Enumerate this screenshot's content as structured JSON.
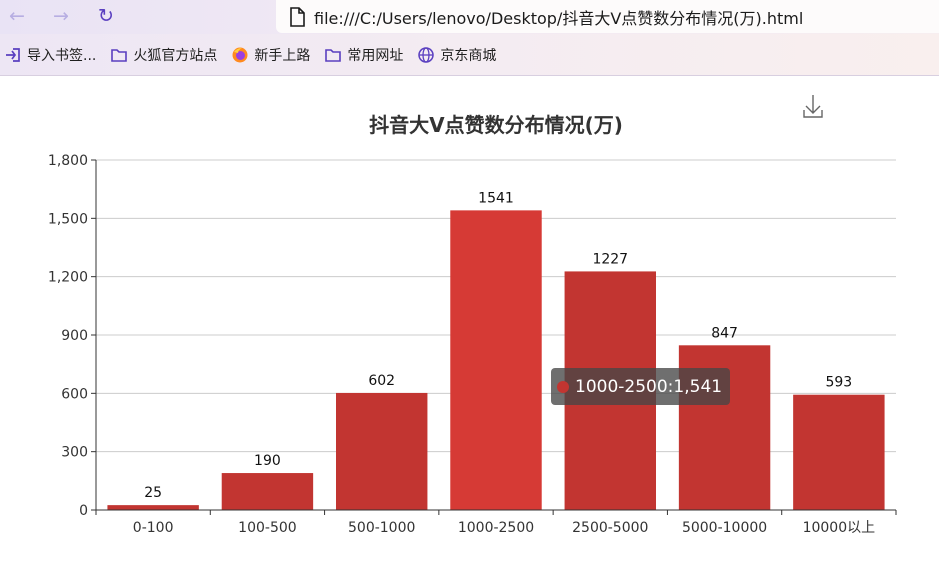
{
  "browser": {
    "url": "file:///C:/Users/lenovo/Desktop/抖音大V点赞数分布情况(万).html",
    "bookmarks": [
      {
        "label": "导入书签...",
        "icon": "import-icon"
      },
      {
        "label": "火狐官方站点",
        "icon": "folder-icon"
      },
      {
        "label": "新手上路",
        "icon": "firefox-icon"
      },
      {
        "label": "常用网址",
        "icon": "folder-icon"
      },
      {
        "label": "京东商城",
        "icon": "globe-icon"
      }
    ]
  },
  "colors": {
    "bar": "#c23531",
    "bar_highlight": "#d63a35",
    "axis": "#333333",
    "grid": "#cccccc",
    "title": "#333333"
  },
  "chart_data": {
    "type": "bar",
    "title": "抖音大V点赞数分布情况(万)",
    "categories": [
      "0-100",
      "100-500",
      "500-1000",
      "1000-2500",
      "2500-5000",
      "5000-10000",
      "10000以上"
    ],
    "values": [
      25,
      190,
      602,
      1541,
      1227,
      847,
      593
    ],
    "ylim": [
      0,
      1800
    ],
    "yticks": [
      "0",
      "300",
      "600",
      "900",
      "1,200",
      "1,500",
      "1,800"
    ],
    "grid": true,
    "highlighted_index": 3,
    "tooltip": {
      "category": "1000-2500",
      "value": "1,541"
    }
  }
}
